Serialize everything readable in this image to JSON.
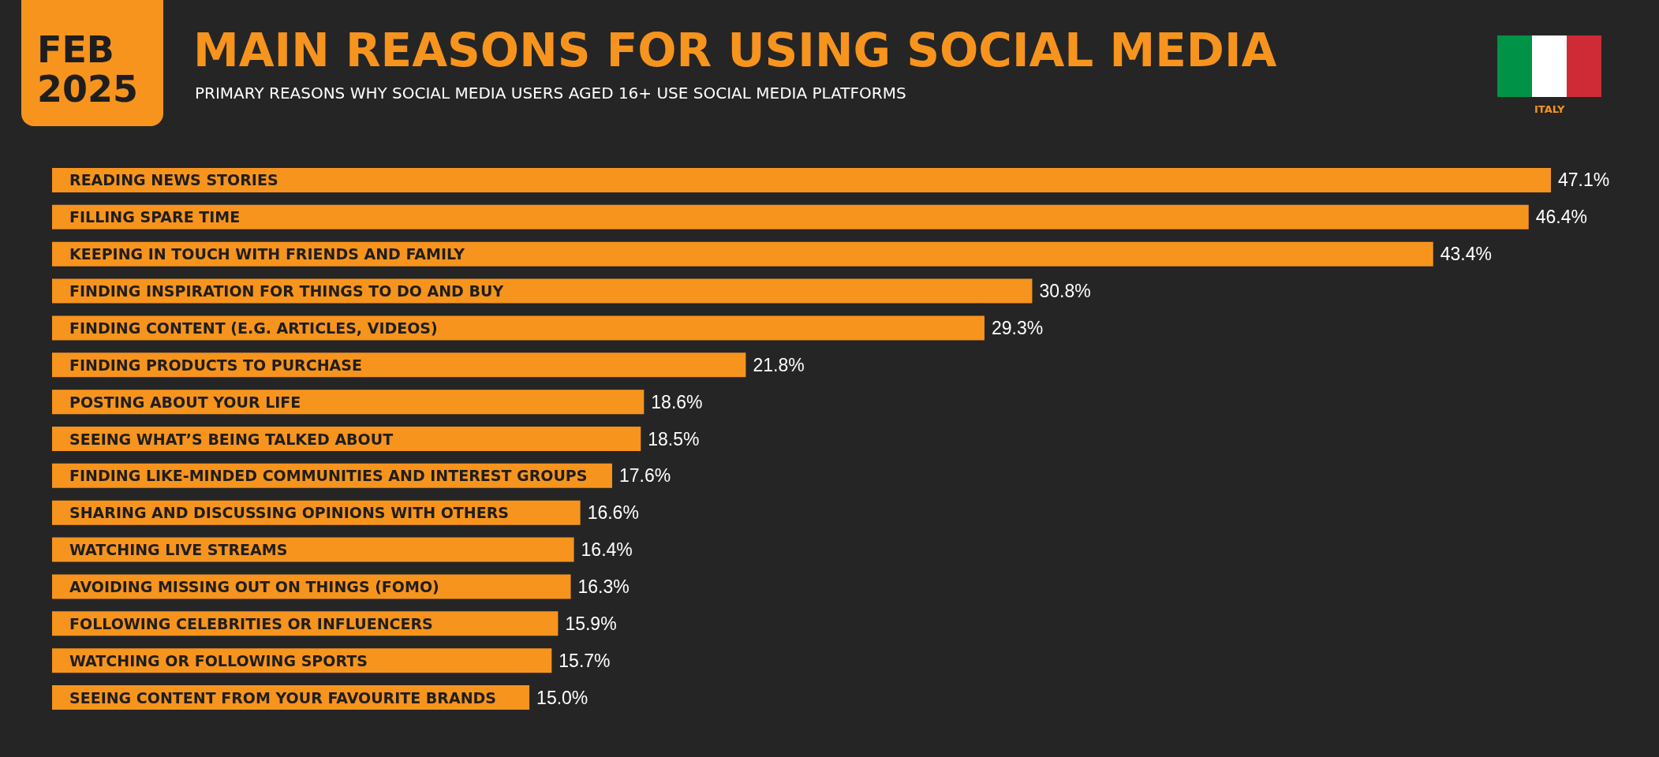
{
  "chart_data": {
    "type": "bar",
    "orientation": "horizontal",
    "title": "MAIN REASONS FOR USING SOCIAL MEDIA",
    "subtitle": "PRIMARY REASONS WHY SOCIAL MEDIA USERS AGED 16+ USE SOCIAL MEDIA PLATFORMS",
    "annotations": [
      "FEB 2025",
      "ITALY"
    ],
    "categories": [
      "READING NEWS STORIES",
      "FILLING SPARE TIME",
      "KEEPING IN TOUCH WITH FRIENDS AND FAMILY",
      "FINDING INSPIRATION FOR THINGS TO DO AND BUY",
      "FINDING CONTENT (E.G. ARTICLES, VIDEOS)",
      "FINDING PRODUCTS TO PURCHASE",
      "POSTING ABOUT YOUR LIFE",
      "SEEING WHAT’S BEING TALKED ABOUT",
      "FINDING LIKE-MINDED COMMUNITIES AND INTEREST GROUPS",
      "SHARING AND DISCUSSING OPINIONS WITH OTHERS",
      "WATCHING LIVE STREAMS",
      "AVOIDING MISSING OUT ON THINGS (FOMO)",
      "FOLLOWING CELEBRITIES OR INFLUENCERS",
      "WATCHING OR FOLLOWING SPORTS",
      "SEEING CONTENT FROM YOUR FAVOURITE BRANDS"
    ],
    "values": [
      47.1,
      46.4,
      43.4,
      30.8,
      29.3,
      21.8,
      18.6,
      18.5,
      17.6,
      16.6,
      16.4,
      16.3,
      15.9,
      15.7,
      15.0
    ],
    "value_labels": [
      "47.1%",
      "46.4%",
      "43.4%",
      "30.8%",
      "29.3%",
      "21.8%",
      "18.6%",
      "18.5%",
      "17.6%",
      "16.6%",
      "16.4%",
      "16.3%",
      "15.9%",
      "15.7%",
      "15.0%"
    ],
    "color": "#f7941d"
  }
}
